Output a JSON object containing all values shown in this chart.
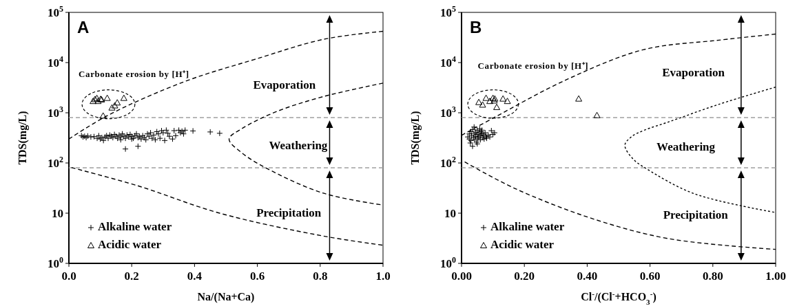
{
  "chart_data": [
    {
      "type": "scatter",
      "title": "A",
      "xlabel": "Na/(Na+Ca)",
      "ylabel": "TDS(mg/L)",
      "log": "y",
      "xlim": [
        0,
        1
      ],
      "ylim": [
        1,
        100000
      ],
      "xticks": [
        {
          "value": 0,
          "label": "0.0"
        },
        0.2,
        0.4,
        0.6,
        0.8,
        {
          "value": 1,
          "label": "1.0"
        }
      ],
      "yticks": [
        {
          "value": 1,
          "label": "10$^{0}$"
        },
        10,
        {
          "value": 100,
          "label": "10$^{2}$"
        },
        {
          "value": 1000,
          "label": "10$^{3}$"
        },
        {
          "value": 10000,
          "label": "10$^{4}$"
        },
        {
          "value": 100000,
          "label": "10$^{5}$"
        }
      ],
      "grid": false,
      "legend": "bottom left",
      "series": [
        {
          "name": "Alkaline water",
          "marker": "cross",
          "color": "#000000",
          "x": [
            0.04,
            0.045,
            0.05,
            0.055,
            0.06,
            0.07,
            0.08,
            0.09,
            0.095,
            0.1,
            0.105,
            0.11,
            0.115,
            0.12,
            0.125,
            0.13,
            0.135,
            0.14,
            0.145,
            0.15,
            0.155,
            0.16,
            0.165,
            0.17,
            0.175,
            0.18,
            0.185,
            0.19,
            0.195,
            0.2,
            0.205,
            0.21,
            0.215,
            0.22,
            0.225,
            0.23,
            0.235,
            0.24,
            0.245,
            0.25,
            0.255,
            0.26,
            0.265,
            0.27,
            0.275,
            0.28,
            0.285,
            0.29,
            0.295,
            0.3,
            0.305,
            0.31,
            0.315,
            0.32,
            0.33,
            0.335,
            0.34,
            0.35,
            0.355,
            0.36,
            0.365,
            0.37,
            0.395,
            0.45,
            0.48,
            0.18,
            0.22,
            0.165,
            0.2
          ],
          "values": [
            350,
            330,
            340,
            320,
            345,
            330,
            335,
            310,
            350,
            300,
            320,
            280,
            330,
            350,
            310,
            360,
            340,
            320,
            370,
            340,
            310,
            360,
            330,
            380,
            340,
            310,
            360,
            330,
            370,
            340,
            310,
            350,
            380,
            320,
            340,
            300,
            350,
            320,
            290,
            380,
            340,
            400,
            310,
            360,
            290,
            420,
            380,
            310,
            440,
            400,
            280,
            450,
            390,
            340,
            300,
            440,
            350,
            450,
            400,
            430,
            380,
            450,
            435,
            415,
            390,
            190,
            215,
            290,
            300
          ]
        },
        {
          "name": "Acidic water",
          "marker": "triangle",
          "color": "#000000",
          "x": [
            0.077,
            0.083,
            0.089,
            0.093,
            0.101,
            0.104,
            0.122,
            0.137,
            0.146,
            0.154,
            0.175,
            0.109
          ],
          "values": [
            1700,
            1850,
            1950,
            1700,
            1870,
            1830,
            1960,
            1260,
            1390,
            1590,
            1960,
            870
          ]
        },
        {
          "type": "line",
          "line_style": "dashed",
          "color": "#000000",
          "x": [
            0,
            0.126,
            0.369,
            0.59,
            0.81,
            1.0
          ],
          "values": [
            300,
            900,
            4200,
            11500,
            29000,
            42000
          ]
        },
        {
          "type": "line",
          "line_style": "dashed",
          "color": "#000000",
          "x": [
            1.0,
            0.81,
            0.66,
            0.55,
            0.51,
            0.55,
            0.63,
            0.81,
            1.0
          ],
          "values": [
            3900,
            2100,
            1050,
            480,
            300,
            160,
            78,
            25,
            14.5
          ]
        },
        {
          "type": "line",
          "line_style": "dashed",
          "color": "#000000",
          "x": [
            0.008,
            0.22,
            0.48,
            0.81,
            1.0
          ],
          "values": [
            81,
            35,
            10,
            3.5,
            2.3
          ]
        }
      ],
      "ref_lines": [
        {
          "axis": "y",
          "value": 800,
          "color": "#a0a0a0",
          "line_style": "dashed"
        },
        {
          "axis": "y",
          "value": 80,
          "color": "#a0a0a0",
          "line_style": "dashed"
        }
      ],
      "annotations": [
        "Carbonate erosion by [H⁺]",
        "Evaporation",
        "Weathering",
        "Precipitation"
      ]
    },
    {
      "type": "scatter",
      "title": "B",
      "xlabel": "Cl$^{-}$/(Cl$^{-}$+HCO$_{3}$$^{-}$)",
      "ylabel": "TDS(mg/L)",
      "log": "y",
      "xlim": [
        0,
        1
      ],
      "ylim": [
        1,
        100000
      ],
      "xticks": [
        {
          "value": 0,
          "label": "0.00"
        },
        {
          "value": 0.2,
          "label": "0.20"
        },
        {
          "value": 0.4,
          "label": "0.40"
        },
        {
          "value": 0.6,
          "label": "0.60"
        },
        {
          "value": 0.8,
          "label": "0.80"
        },
        {
          "value": 1,
          "label": "1.00"
        }
      ],
      "yticks": [
        {
          "value": 1,
          "label": "10$^{0}$"
        },
        10,
        {
          "value": 100,
          "label": "10$^{2}$"
        },
        {
          "value": 1000,
          "label": "10$^{3}$"
        },
        {
          "value": 10000,
          "label": "10$^{4}$"
        },
        {
          "value": 100000,
          "label": "10$^{5}$"
        }
      ],
      "grid": false,
      "legend": "bottom left",
      "series": [
        {
          "name": "Alkaline water",
          "marker": "cross",
          "color": "#000000",
          "x": [
            0.02,
            0.025,
            0.025,
            0.03,
            0.03,
            0.032,
            0.035,
            0.035,
            0.038,
            0.04,
            0.04,
            0.042,
            0.045,
            0.045,
            0.048,
            0.05,
            0.05,
            0.052,
            0.055,
            0.055,
            0.058,
            0.06,
            0.06,
            0.062,
            0.065,
            0.068,
            0.07,
            0.072,
            0.075,
            0.078,
            0.08,
            0.085,
            0.09,
            0.095,
            0.1,
            0.105,
            0.028,
            0.065,
            0.05
          ],
          "values": [
            330,
            300,
            380,
            420,
            280,
            350,
            215,
            460,
            320,
            380,
            520,
            290,
            410,
            340,
            260,
            450,
            370,
            310,
            400,
            330,
            480,
            350,
            290,
            420,
            380,
            320,
            360,
            300,
            400,
            340,
            310,
            360,
            330,
            440,
            370,
            400,
            250,
            450,
            240
          ]
        },
        {
          "name": "Acidic water",
          "marker": "triangle",
          "color": "#000000",
          "x": [
            0.055,
            0.067,
            0.078,
            0.09,
            0.1,
            0.104,
            0.106,
            0.112,
            0.132,
            0.146,
            0.373,
            0.431
          ],
          "values": [
            1620,
            1440,
            1960,
            1700,
            1960,
            1740,
            1900,
            1290,
            1900,
            1700,
            1900,
            890
          ]
        },
        {
          "type": "line",
          "line_style": "dashed",
          "color": "#000000",
          "x": [
            0,
            0.108,
            0.335,
            0.578,
            0.82,
            1.0
          ],
          "values": [
            355,
            830,
            4600,
            18000,
            28000,
            37000
          ]
        },
        {
          "type": "line",
          "line_style": "dotted",
          "color": "#000000",
          "x": [
            1.0,
            0.82,
            0.66,
            0.58,
            0.54,
            0.52,
            0.546,
            0.59,
            0.74,
            1.0
          ],
          "values": [
            3250,
            1480,
            660,
            445,
            330,
            225,
            120,
            76,
            24.5,
            10.3
          ]
        },
        {
          "type": "line",
          "line_style": "dashed",
          "color": "#000000",
          "x": [
            0.01,
            0.17,
            0.416,
            0.66,
            1.0
          ],
          "values": [
            105,
            31,
            7.8,
            3.1,
            1.9
          ]
        }
      ],
      "ref_lines": [
        {
          "axis": "y",
          "value": 800,
          "color": "#a0a0a0",
          "line_style": "dashed"
        },
        {
          "axis": "y",
          "value": 80,
          "color": "#a0a0a0",
          "line_style": "dashed"
        }
      ],
      "annotations": [
        "Carbonate erosion by [H⁺]",
        "Evaporation",
        "Weathering",
        "Precipitation"
      ]
    }
  ]
}
